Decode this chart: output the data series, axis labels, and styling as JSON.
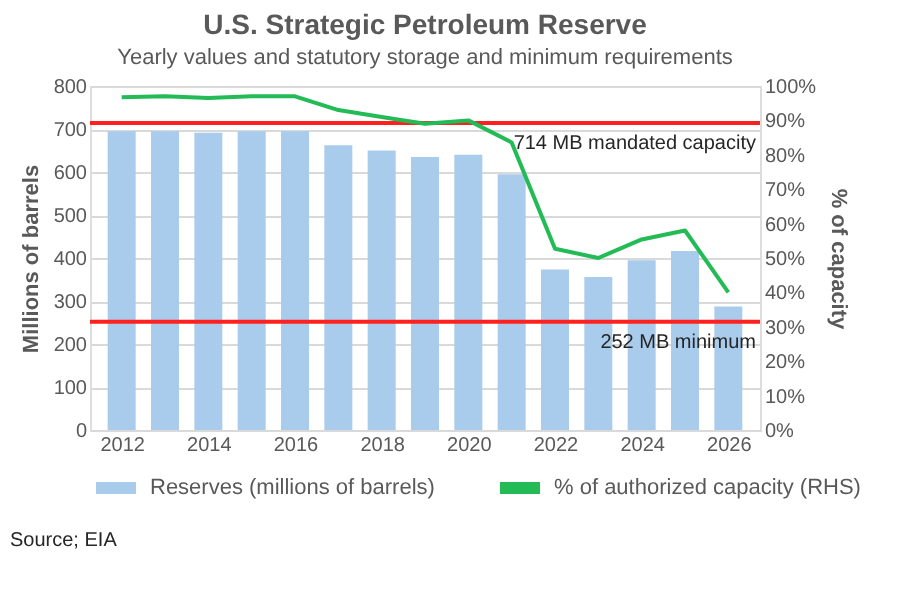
{
  "chart_data": {
    "type": "bar",
    "title": "U.S. Strategic Petroleum Reserve",
    "subtitle": "Yearly values and statutory storage and minimum requirements",
    "ylabel": "Millions of barrels",
    "y2label": "% of capacity",
    "x": [
      2012,
      2013,
      2014,
      2015,
      2016,
      2017,
      2018,
      2019,
      2020,
      2021,
      2022,
      2023,
      2024,
      2025,
      2026
    ],
    "xlim": [
      2011.5,
      2026.5
    ],
    "xticks": [
      2012,
      2014,
      2016,
      2018,
      2020,
      2022,
      2024,
      2026
    ],
    "series": [
      {
        "name": "Reserves (millions of barrels)",
        "color": "#a9cbec",
        "values": [
          695,
          695,
          691,
          695,
          695,
          662,
          650,
          635,
          640,
          595,
          373,
          356,
          395,
          416,
          287
        ]
      },
      {
        "name": "% of authorized capacity (RHS)",
        "type": "line",
        "axis": "y2",
        "color": "#22bb55",
        "values": [
          96.7,
          97,
          96.5,
          97,
          97,
          93,
          91,
          89,
          90,
          83.6,
          52.7,
          50,
          55.4,
          58,
          40
        ]
      }
    ],
    "ylim": [
      0,
      800
    ],
    "yticks": [
      0,
      100,
      200,
      300,
      400,
      500,
      600,
      700,
      800
    ],
    "y2lim": [
      0,
      100
    ],
    "y2ticks": [
      {
        "value": 0,
        "label": "0%"
      },
      {
        "value": 10,
        "label": "10%"
      },
      {
        "value": 20,
        "label": "20%"
      },
      {
        "value": 30,
        "label": "30%"
      },
      {
        "value": 40,
        "label": "40%"
      },
      {
        "value": 50,
        "label": "50%"
      },
      {
        "value": 60,
        "label": "60%"
      },
      {
        "value": 70,
        "label": "70%"
      },
      {
        "value": 80,
        "label": "80%"
      },
      {
        "value": 90,
        "label": "90%"
      },
      {
        "value": 100,
        "label": "100%"
      }
    ],
    "ref_lines": [
      {
        "axis": "y",
        "value": 714,
        "label": "714 MB mandated capacity",
        "color": "#ff2020"
      },
      {
        "axis": "y",
        "value": 252,
        "label": "252 MB minimum",
        "color": "#ff2020"
      }
    ],
    "annotations": [
      "Source; EIA"
    ],
    "grid": "y",
    "legend": "bottom",
    "marker": "none",
    "line_style": "solid"
  }
}
